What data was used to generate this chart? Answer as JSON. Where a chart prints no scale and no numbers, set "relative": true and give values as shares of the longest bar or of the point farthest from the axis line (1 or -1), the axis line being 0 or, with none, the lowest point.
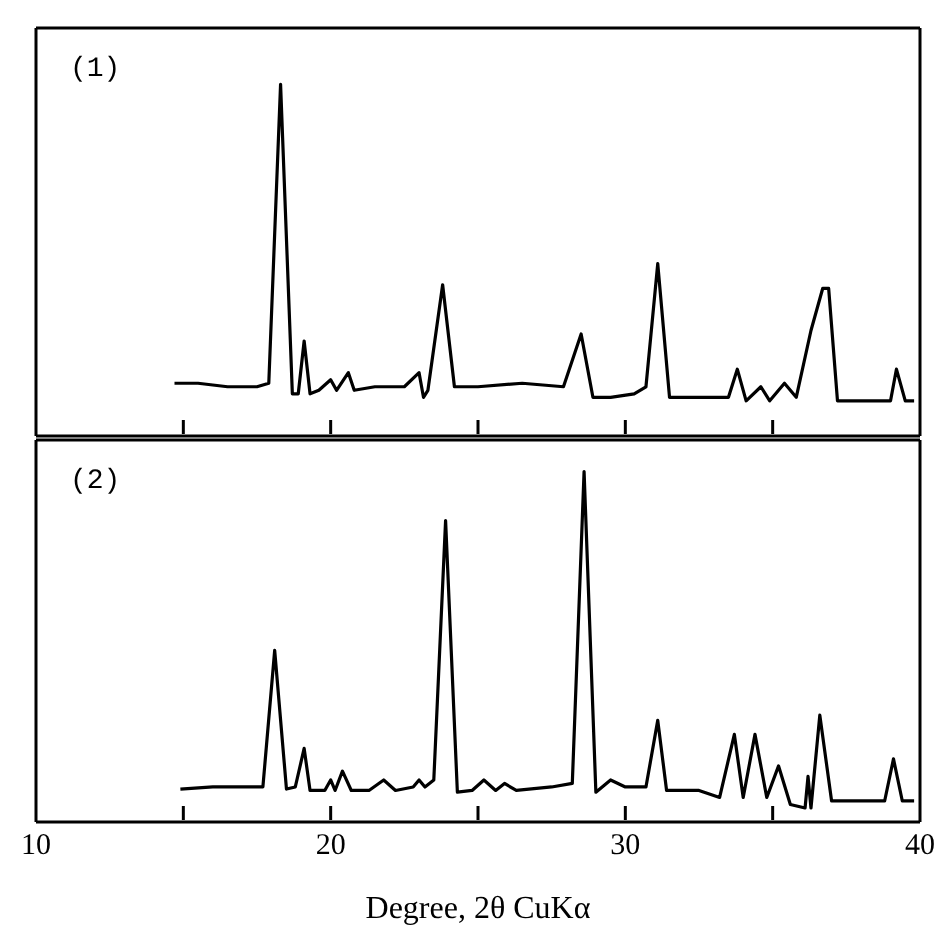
{
  "chart_data": [
    {
      "type": "line",
      "title": "(1)",
      "relative": true,
      "tick_labels": false,
      "marker": "none",
      "line_style": "solid",
      "xlim": [
        10,
        40
      ],
      "xticks": [
        15,
        20,
        25,
        30,
        35
      ],
      "series": [
        {
          "color": "#000000",
          "x": [
            14.7,
            15.5,
            16.5,
            17.5,
            17.9,
            18.3,
            18.7,
            18.9,
            19.1,
            19.3,
            19.6,
            20.0,
            20.2,
            20.6,
            20.8,
            21.5,
            22.5,
            23.0,
            23.15,
            23.3,
            23.8,
            24.2,
            25.0,
            26.5,
            27.9,
            28.5,
            28.9,
            29.5,
            30.3,
            30.7,
            31.1,
            31.5,
            32.5,
            33.5,
            33.8,
            34.1,
            34.6,
            34.9,
            35.4,
            35.8,
            36.3,
            36.7,
            36.9,
            37.2,
            38.5,
            39.0,
            39.2,
            39.5,
            39.8
          ],
          "values": [
            0.15,
            0.15,
            0.14,
            0.14,
            0.15,
            1.0,
            0.12,
            0.12,
            0.27,
            0.12,
            0.13,
            0.16,
            0.13,
            0.18,
            0.13,
            0.14,
            0.14,
            0.18,
            0.11,
            0.13,
            0.43,
            0.14,
            0.14,
            0.15,
            0.14,
            0.29,
            0.11,
            0.11,
            0.12,
            0.14,
            0.49,
            0.11,
            0.11,
            0.11,
            0.19,
            0.1,
            0.14,
            0.1,
            0.15,
            0.11,
            0.3,
            0.42,
            0.42,
            0.1,
            0.1,
            0.1,
            0.19,
            0.1,
            0.1
          ]
        }
      ]
    },
    {
      "type": "line",
      "title": "(2)",
      "relative": true,
      "marker": "none",
      "line_style": "solid",
      "xlabel": "Degree, 2θ CuKα",
      "xlim": [
        10,
        40
      ],
      "xticks": [
        10,
        {
          "value": 15,
          "label": null
        },
        20,
        {
          "value": 25,
          "label": null
        },
        30,
        {
          "value": 35,
          "label": null
        },
        40
      ],
      "series": [
        {
          "color": "#000000",
          "x": [
            14.9,
            16.0,
            17.0,
            17.7,
            18.1,
            18.5,
            18.8,
            19.1,
            19.3,
            19.8,
            20.0,
            20.15,
            20.4,
            20.7,
            21.3,
            21.8,
            22.2,
            22.8,
            23.0,
            23.2,
            23.5,
            23.9,
            24.3,
            24.8,
            25.2,
            25.6,
            25.9,
            26.3,
            27.5,
            28.2,
            28.6,
            29.0,
            29.5,
            30.0,
            30.7,
            31.1,
            31.4,
            32.5,
            33.2,
            33.7,
            34.0,
            34.4,
            34.8,
            35.2,
            35.6,
            36.1,
            36.2,
            36.3,
            36.6,
            37.0,
            38.0,
            38.8,
            39.1,
            39.4,
            39.8
          ],
          "values": [
            0.094,
            0.1,
            0.1,
            0.1,
            0.49,
            0.094,
            0.1,
            0.21,
            0.09,
            0.09,
            0.12,
            0.09,
            0.145,
            0.09,
            0.09,
            0.12,
            0.09,
            0.1,
            0.12,
            0.1,
            0.12,
            0.86,
            0.085,
            0.09,
            0.12,
            0.09,
            0.11,
            0.09,
            0.1,
            0.11,
            1.0,
            0.085,
            0.12,
            0.1,
            0.1,
            0.29,
            0.09,
            0.09,
            0.07,
            0.25,
            0.07,
            0.25,
            0.07,
            0.16,
            0.05,
            0.04,
            0.13,
            0.04,
            0.305,
            0.06,
            0.06,
            0.06,
            0.18,
            0.06,
            0.06
          ]
        }
      ]
    }
  ]
}
